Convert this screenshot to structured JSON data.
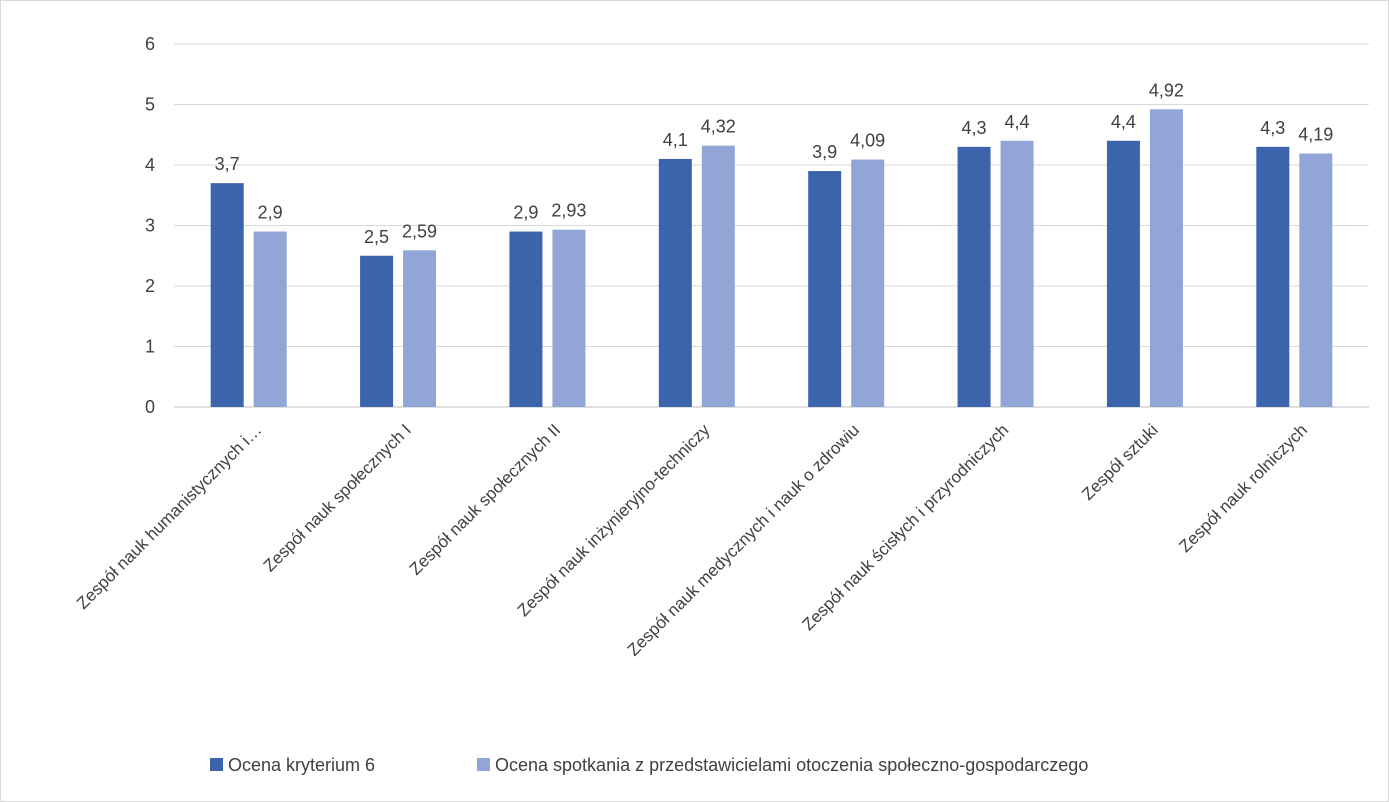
{
  "chart_data": {
    "type": "bar",
    "title": "",
    "xlabel": "",
    "ylabel": "",
    "ylim": [
      0,
      6
    ],
    "yticks": [
      "0",
      "1",
      "2",
      "3",
      "4",
      "5",
      "6"
    ],
    "grid": true,
    "legend_position": "bottom",
    "categories": [
      "Zespół nauk humanistycznych i…",
      "Zespół nauk społecznych I",
      "Zespół nauk społecznych II",
      "Zespół nauk inżynieryjno-techniczy",
      "Zespół nauk medycznych i nauk o zdrowiu",
      "Zespół nauk ścisłych i przyrodniczych",
      "Zespół sztuki",
      "Zespół nauk rolniczych"
    ],
    "series": [
      {
        "name": "Ocena kryterium 6",
        "color": "#3c64ac",
        "values": [
          3.7,
          2.5,
          2.9,
          4.1,
          3.9,
          4.3,
          4.4,
          4.3
        ],
        "labels": [
          "3,7",
          "2,5",
          "2,9",
          "4,1",
          "3,9",
          "4,3",
          "4,4",
          "4,3"
        ]
      },
      {
        "name": "Ocena spotkania z przedstawicielami otoczenia społeczno-gospodarczego",
        "color": "#91a5d6",
        "values": [
          2.9,
          2.59,
          2.93,
          4.32,
          4.09,
          4.4,
          4.92,
          4.19
        ],
        "labels": [
          "2,9",
          "2,59",
          "2,93",
          "4,32",
          "4,09",
          "4,4",
          "4,92",
          "4,19"
        ]
      }
    ],
    "colors": {
      "grid": "#d9d9d9",
      "axis": "#bfbfbf",
      "text": "#404040"
    }
  }
}
